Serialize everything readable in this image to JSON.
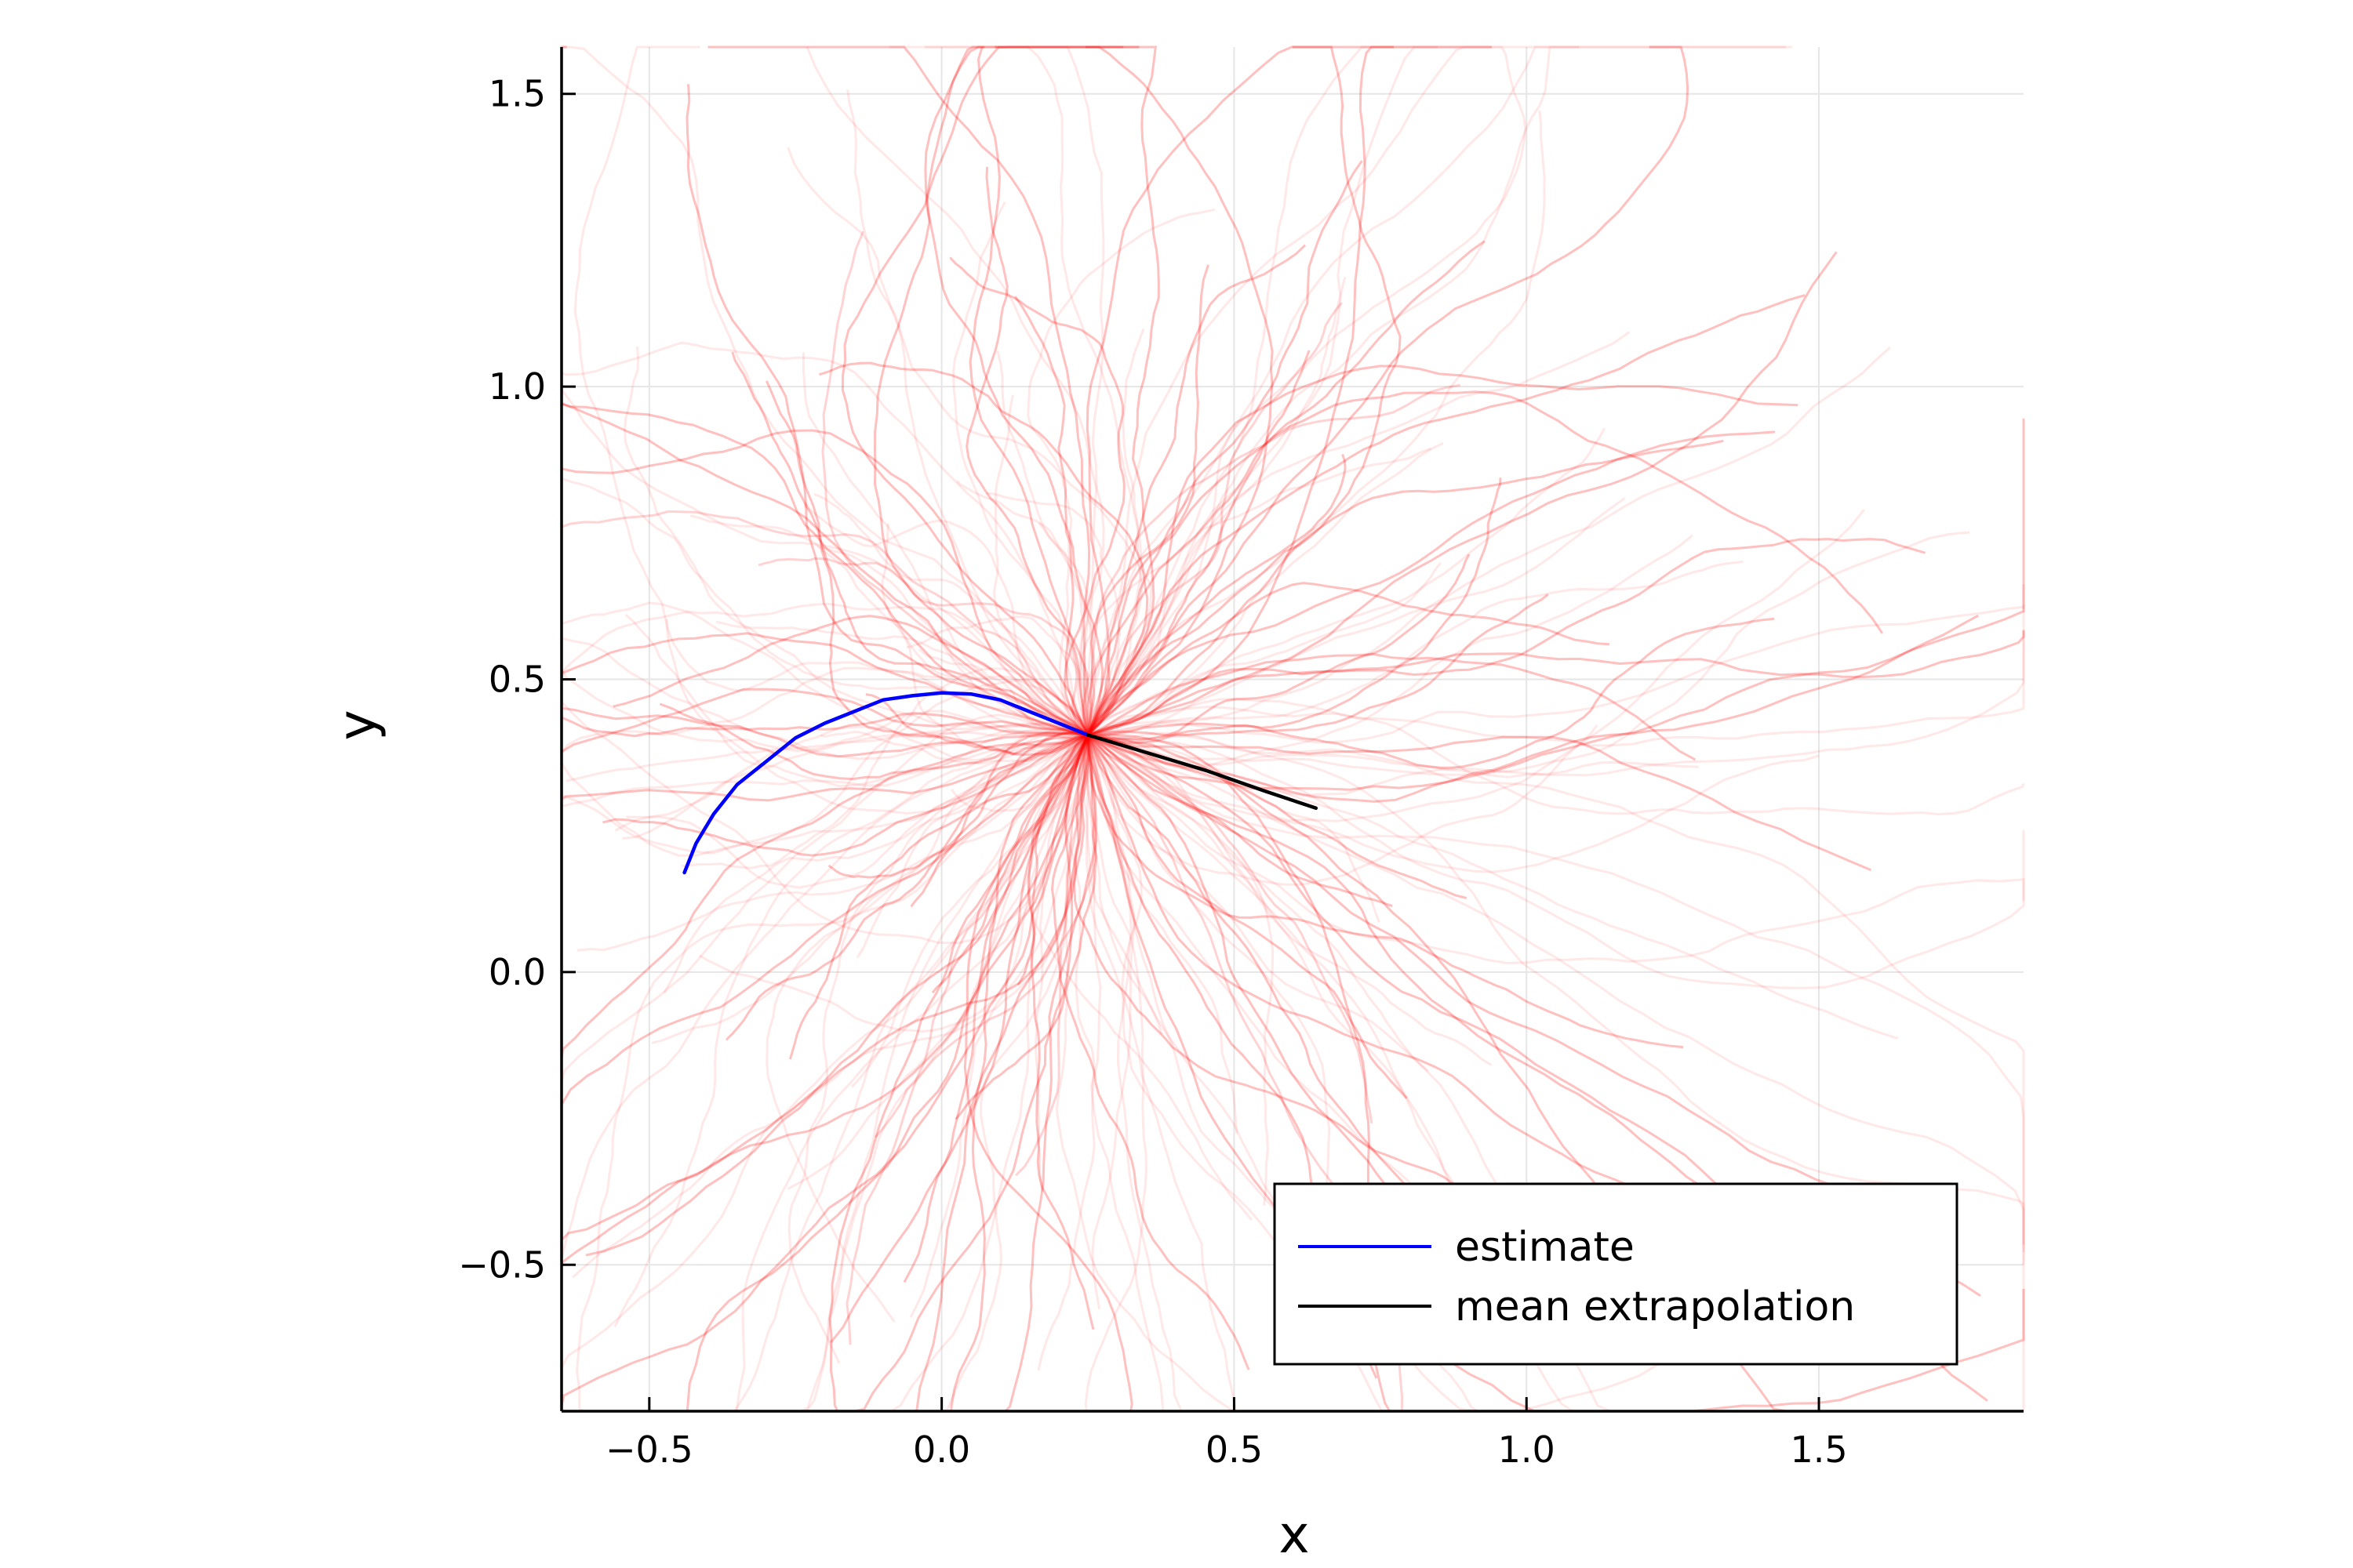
{
  "chart_data": {
    "type": "line",
    "title": "",
    "xlabel": "x",
    "ylabel": "y",
    "xlim": [
      -0.65,
      1.85
    ],
    "ylim": [
      -0.75,
      1.58
    ],
    "xticks": [
      -0.5,
      0.0,
      0.5,
      1.0,
      1.5
    ],
    "yticks": [
      -0.5,
      0.0,
      0.5,
      1.0,
      1.5
    ],
    "xtick_labels": [
      "−0.5",
      "0.0",
      "0.5",
      "1.0",
      "1.5"
    ],
    "ytick_labels": [
      "−0.5",
      "0.0",
      "0.5",
      "1.0",
      "1.5"
    ],
    "grid": true,
    "legend_position": "bottom-right",
    "colors": {
      "estimate": "#0000ff",
      "mean_extrapolation": "#000000",
      "samples": "#ff0000",
      "grid": "#e6e6e6"
    },
    "series": [
      {
        "name": "estimate",
        "x": [
          -0.44,
          -0.42,
          -0.39,
          -0.35,
          -0.3,
          -0.25,
          -0.2,
          -0.15,
          -0.1,
          -0.05,
          0.0,
          0.05,
          0.1,
          0.15,
          0.2,
          0.25
        ],
        "y": [
          0.17,
          0.22,
          0.27,
          0.32,
          0.36,
          0.4,
          0.425,
          0.445,
          0.465,
          0.472,
          0.477,
          0.475,
          0.465,
          0.445,
          0.425,
          0.405
        ]
      },
      {
        "name": "mean extrapolation",
        "x": [
          0.25,
          0.35,
          0.45,
          0.55,
          0.64
        ],
        "y": [
          0.405,
          0.375,
          0.345,
          0.31,
          0.28
        ]
      }
    ],
    "samples": {
      "description_count": 420,
      "origin": [
        0.25,
        0.405
      ]
    }
  },
  "legend": {
    "items": [
      {
        "label": "estimate"
      },
      {
        "label": "mean extrapolation"
      }
    ]
  }
}
